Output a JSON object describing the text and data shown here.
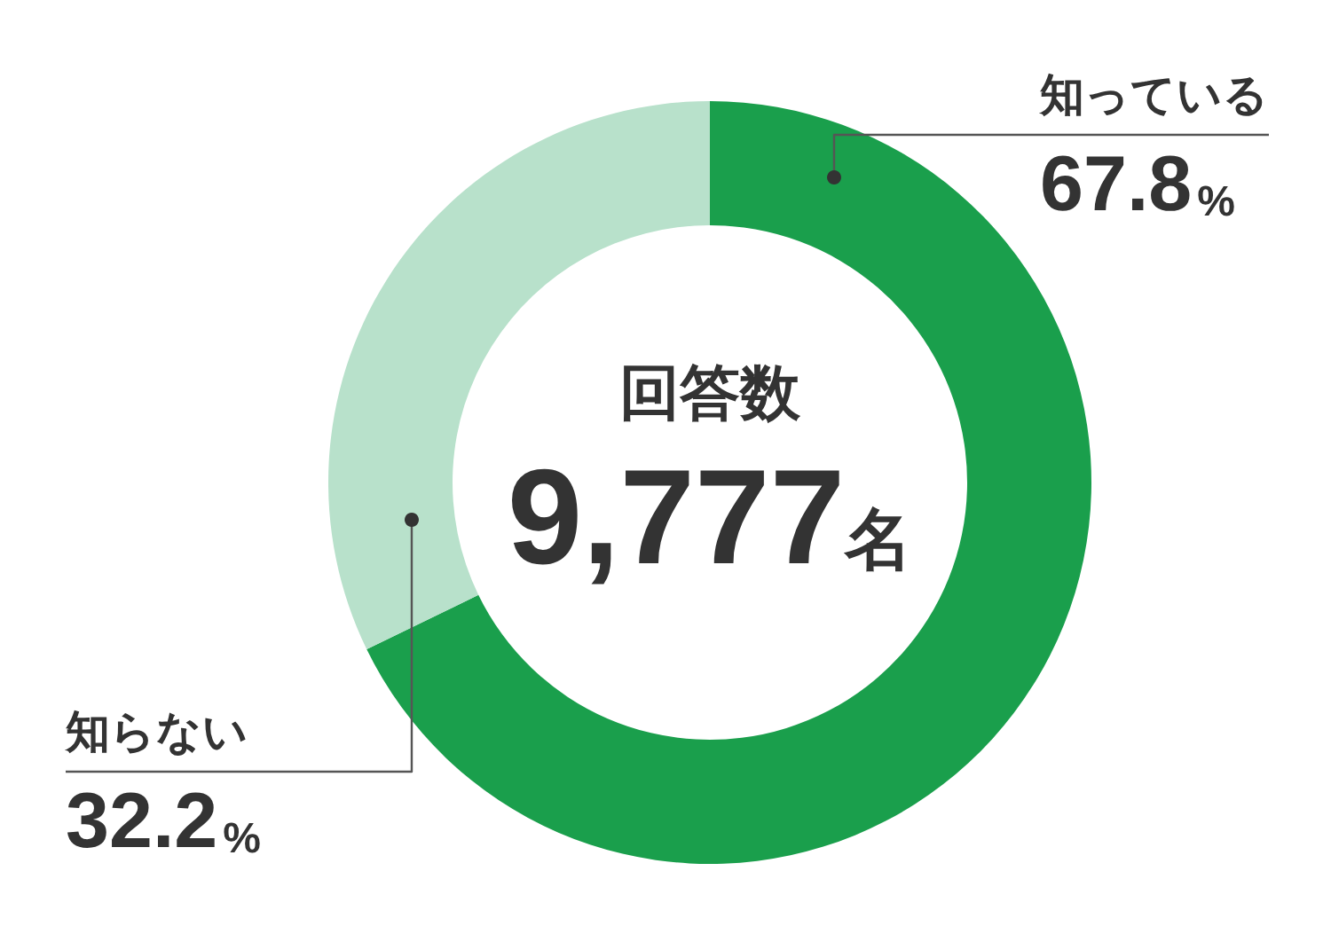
{
  "chart_data": {
    "type": "donut",
    "categories": [
      "知っている",
      "知らない"
    ],
    "values": [
      67.8,
      32.2
    ],
    "colors": [
      "#1a9f4c",
      "#b8e1cb"
    ],
    "value_labels": [
      "67.8%",
      "32.2%"
    ],
    "annotations": [
      "回答数",
      "9,777名"
    ]
  }
}
